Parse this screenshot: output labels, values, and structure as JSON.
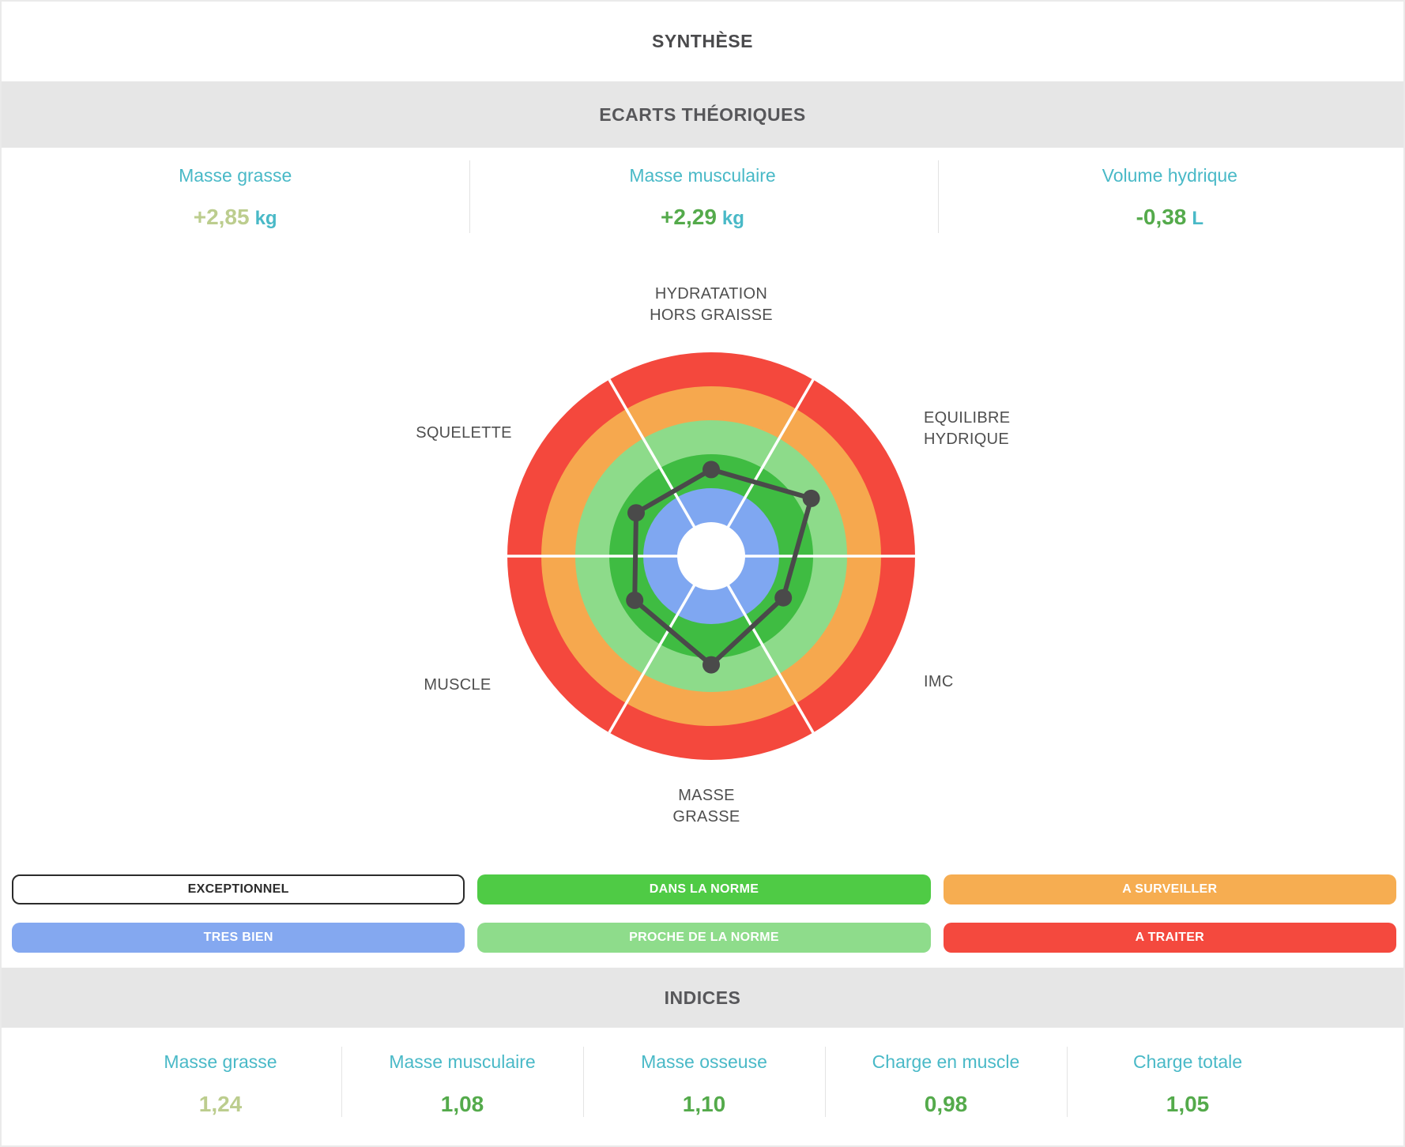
{
  "title": "SYNTHÈSE",
  "ecarts": {
    "section_title": "ECARTS THÉORIQUES",
    "items": [
      {
        "label": "Masse grasse",
        "value": "+2,85",
        "unit": "kg",
        "value_color": "#bccd8e"
      },
      {
        "label": "Masse musculaire",
        "value": "+2,29",
        "unit": "kg",
        "value_color": "#54aa4b"
      },
      {
        "label": "Volume hydrique",
        "value": "-0,38",
        "unit": "L",
        "value_color": "#54aa4b"
      }
    ]
  },
  "radar": {
    "rings": [
      {
        "label": "EXCEPTIONNEL",
        "color": "#ffffff"
      },
      {
        "label": "TRES BIEN",
        "color": "#7fa7f1"
      },
      {
        "label": "DANS LA NORME",
        "color": "#3fbc42"
      },
      {
        "label": "PROCHE DE LA NORME",
        "color": "#8ddb8a"
      },
      {
        "label": "A SURVEILLER",
        "color": "#f6a84e"
      },
      {
        "label": "A TRAITER",
        "color": "#f4483d"
      }
    ],
    "spoke_color": "#ffffff",
    "polygon_color": "#4a4a4a",
    "axes": [
      {
        "id": "hydratation",
        "lines": [
          "HYDRATATION",
          "HORS GRAISSE"
        ],
        "angle": 90,
        "value": 2.55
      },
      {
        "id": "equilibre",
        "lines": [
          "EQUILIBRE",
          "HYDRIQUE"
        ],
        "angle": 30,
        "value": 3.4
      },
      {
        "id": "imc",
        "lines": [
          "IMC"
        ],
        "angle": -30,
        "value": 2.45
      },
      {
        "id": "masse-grasse",
        "lines": [
          "MASSE",
          "GRASSE"
        ],
        "angle": 270,
        "value": 3.2
      },
      {
        "id": "muscle",
        "lines": [
          "MUSCLE"
        ],
        "angle": 210,
        "value": 2.6
      },
      {
        "id": "squelette",
        "lines": [
          "SQUELETTE"
        ],
        "angle": 150,
        "value": 2.55
      }
    ]
  },
  "legend": {
    "items": [
      {
        "label": "EXCEPTIONNEL",
        "bg": "#ffffff",
        "text": "#2b2b2b",
        "border": "2px solid #2b2b2b"
      },
      {
        "label": "DANS LA NORME",
        "bg": "#4fcb45",
        "text": "#ffffff",
        "border": "none"
      },
      {
        "label": "A SURVEILLER",
        "bg": "#f6ad51",
        "text": "#ffffff",
        "border": "none"
      },
      {
        "label": "TRES BIEN",
        "bg": "#84a8f0",
        "text": "#ffffff",
        "border": "none"
      },
      {
        "label": "PROCHE DE LA NORME",
        "bg": "#8edc8b",
        "text": "#ffffff",
        "border": "none"
      },
      {
        "label": "A TRAITER",
        "bg": "#f4493e",
        "text": "#ffffff",
        "border": "none"
      }
    ]
  },
  "indices": {
    "section_title": "INDICES",
    "items": [
      {
        "label": "Masse grasse",
        "value": "1,24",
        "value_color": "#bccd8e"
      },
      {
        "label": "Masse musculaire",
        "value": "1,08",
        "value_color": "#54aa4b"
      },
      {
        "label": "Masse osseuse",
        "value": "1,10",
        "value_color": "#54aa4b"
      },
      {
        "label": "Charge en muscle",
        "value": "0,98",
        "value_color": "#54aa4b"
      },
      {
        "label": "Charge totale",
        "value": "1,05",
        "value_color": "#54aa4b"
      }
    ]
  },
  "colors": {
    "teal": "#49b9c7",
    "band_bg": "#e6e6e6",
    "band_text": "#57575a",
    "value_green": "#54aa4b",
    "value_olive": "#bccd8e"
  },
  "chart_data": [
    {
      "type": "radar",
      "title": "SYNTHÈSE",
      "axes": [
        "HYDRATATION HORS GRAISSE",
        "EQUILIBRE HYDRIQUE",
        "IMC",
        "MASSE GRASSE",
        "MUSCLE",
        "SQUELETTE"
      ],
      "values_ring_units": [
        2.55,
        3.4,
        2.45,
        3.2,
        2.6,
        2.55
      ],
      "rlim": [
        0,
        6
      ],
      "ring_bands_center_to_edge": [
        "EXCEPTIONNEL",
        "TRES BIEN",
        "DANS LA NORME",
        "PROCHE DE LA NORME",
        "A SURVEILLER",
        "A TRAITER"
      ],
      "legend_position": "below-chart",
      "grid": "concentric-sextants"
    },
    {
      "type": "table",
      "title": "ECARTS THÉORIQUES",
      "columns": [
        "Masse grasse",
        "Masse musculaire",
        "Volume hydrique"
      ],
      "values": [
        "+2,85 kg",
        "+2,29 kg",
        "-0,38 L"
      ]
    },
    {
      "type": "table",
      "title": "INDICES",
      "columns": [
        "Masse grasse",
        "Masse musculaire",
        "Masse osseuse",
        "Charge en muscle",
        "Charge totale"
      ],
      "values": [
        "1,24",
        "1,08",
        "1,10",
        "0,98",
        "1,05"
      ]
    }
  ]
}
